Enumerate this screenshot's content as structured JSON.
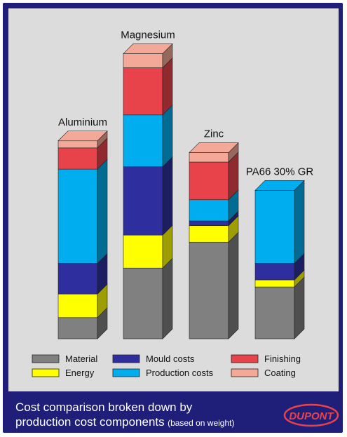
{
  "chart_data": {
    "type": "bar",
    "stacked": true,
    "categories": [
      "Aluminium",
      "Magnesium",
      "Zinc",
      "PA66 30% GR"
    ],
    "series": [
      {
        "name": "Material",
        "color": "#808080",
        "values": [
          9,
          30,
          41,
          22
        ]
      },
      {
        "name": "Energy",
        "color": "#ffff00",
        "values": [
          10,
          14,
          7,
          3
        ]
      },
      {
        "name": "Mould costs",
        "color": "#2e2e9e",
        "values": [
          13,
          29,
          2,
          7
        ]
      },
      {
        "name": "Production costs",
        "color": "#00aeef",
        "values": [
          40,
          22,
          9,
          31
        ]
      },
      {
        "name": "Finishing",
        "color": "#e8434b",
        "values": [
          9,
          20,
          16,
          0
        ]
      },
      {
        "name": "Coating",
        "color": "#f4a898",
        "values": [
          3,
          6,
          4,
          0
        ]
      }
    ],
    "legend_order": [
      "Material",
      "Mould costs",
      "Finishing",
      "Energy",
      "Production costs",
      "Coating"
    ],
    "ylim": [
      0,
      125
    ],
    "grid": false,
    "legend_position": "bottom"
  },
  "caption": {
    "line1": "Cost comparison broken down by",
    "line2": "production cost components",
    "note": "(based on weight)"
  },
  "logo": {
    "text": "DUPONT",
    "color": "#e8434b"
  }
}
